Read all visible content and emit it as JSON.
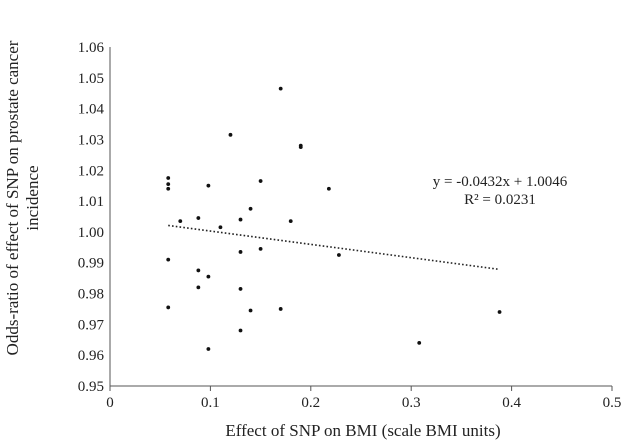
{
  "chart_data": {
    "type": "scatter",
    "xlabel": "Effect of SNP on BMI (scale BMI units)",
    "ylabel_lines": [
      "Odds-ratio of effect of SNP on prostate cancer",
      "incidence"
    ],
    "xlim": [
      0,
      0.5
    ],
    "ylim": [
      0.95,
      1.06
    ],
    "x_ticks": [
      0,
      0.1,
      0.2,
      0.3,
      0.4,
      0.5
    ],
    "x_tick_labels": [
      "0",
      "0.1",
      "0.2",
      "0.3",
      "0.4",
      "0.5"
    ],
    "y_ticks": [
      0.95,
      0.96,
      0.97,
      0.98,
      0.99,
      1.0,
      1.01,
      1.02,
      1.03,
      1.04,
      1.05,
      1.06
    ],
    "y_tick_labels": [
      "0.95",
      "0.96",
      "0.97",
      "0.98",
      "0.99",
      "1.00",
      "1.01",
      "1.02",
      "1.03",
      "1.04",
      "1.05",
      "1.06"
    ],
    "grid": false,
    "points": [
      {
        "x": 0.058,
        "y": 1.0175
      },
      {
        "x": 0.058,
        "y": 1.0155
      },
      {
        "x": 0.058,
        "y": 1.014
      },
      {
        "x": 0.058,
        "y": 0.991
      },
      {
        "x": 0.058,
        "y": 0.9755
      },
      {
        "x": 0.07,
        "y": 1.0035
      },
      {
        "x": 0.088,
        "y": 1.0045
      },
      {
        "x": 0.088,
        "y": 0.9875
      },
      {
        "x": 0.088,
        "y": 0.982
      },
      {
        "x": 0.098,
        "y": 1.015
      },
      {
        "x": 0.098,
        "y": 0.9855
      },
      {
        "x": 0.098,
        "y": 0.962
      },
      {
        "x": 0.11,
        "y": 1.0015
      },
      {
        "x": 0.12,
        "y": 1.0315
      },
      {
        "x": 0.13,
        "y": 1.004
      },
      {
        "x": 0.13,
        "y": 0.9935
      },
      {
        "x": 0.13,
        "y": 0.9815
      },
      {
        "x": 0.13,
        "y": 0.968
      },
      {
        "x": 0.14,
        "y": 1.0075
      },
      {
        "x": 0.14,
        "y": 0.9745
      },
      {
        "x": 0.15,
        "y": 1.0165
      },
      {
        "x": 0.15,
        "y": 0.9945
      },
      {
        "x": 0.17,
        "y": 1.0465
      },
      {
        "x": 0.17,
        "y": 0.975
      },
      {
        "x": 0.18,
        "y": 1.0035
      },
      {
        "x": 0.19,
        "y": 1.028
      },
      {
        "x": 0.19,
        "y": 1.0275
      },
      {
        "x": 0.218,
        "y": 1.014
      },
      {
        "x": 0.228,
        "y": 0.9925
      },
      {
        "x": 0.308,
        "y": 0.964
      },
      {
        "x": 0.388,
        "y": 0.974
      }
    ],
    "trendline": {
      "type": "linear",
      "x_range": [
        0.058,
        0.388
      ],
      "slope": -0.0432,
      "intercept": 1.0046,
      "equation_label": "y = -0.0432x + 1.0046",
      "r2_label": "R² = 0.0231"
    },
    "colors": {
      "points": "#111111",
      "trendline": "#222222",
      "axis": "#555555",
      "text": "#222222"
    }
  }
}
